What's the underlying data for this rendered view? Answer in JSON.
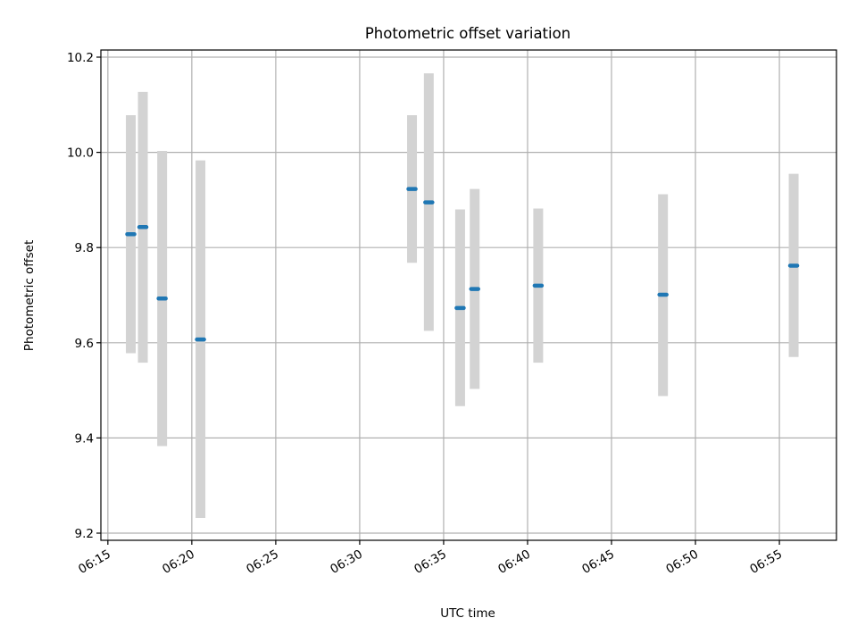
{
  "chart_data": {
    "type": "scatter",
    "title": "Photometric offset variation",
    "xlabel": "UTC time",
    "ylabel": "Photometric offset",
    "xticks": [
      "06:15",
      "06:20",
      "06:25",
      "06:30",
      "06:35",
      "06:40",
      "06:45",
      "06:50",
      "06:55"
    ],
    "yticks": [
      "9.2",
      "9.4",
      "9.6",
      "9.8",
      "10.0",
      "10.2"
    ],
    "xlim": [
      "06:14:35",
      "06:58:24"
    ],
    "ylim": [
      9.185,
      10.215
    ],
    "grid": true,
    "points": [
      {
        "x": "06:16:22",
        "y": 9.828,
        "err_low": 9.578,
        "err_high": 10.078
      },
      {
        "x": "06:17:05",
        "y": 9.843,
        "err_low": 9.558,
        "err_high": 10.127
      },
      {
        "x": "06:18:14",
        "y": 9.693,
        "err_low": 9.383,
        "err_high": 10.003
      },
      {
        "x": "06:20:31",
        "y": 9.607,
        "err_low": 9.232,
        "err_high": 9.983
      },
      {
        "x": "06:33:07",
        "y": 9.923,
        "err_low": 9.768,
        "err_high": 10.078
      },
      {
        "x": "06:34:07",
        "y": 9.895,
        "err_low": 9.625,
        "err_high": 10.166
      },
      {
        "x": "06:35:59",
        "y": 9.673,
        "err_low": 9.467,
        "err_high": 9.88
      },
      {
        "x": "06:36:51",
        "y": 9.713,
        "err_low": 9.503,
        "err_high": 9.923
      },
      {
        "x": "06:40:38",
        "y": 9.72,
        "err_low": 9.558,
        "err_high": 9.882
      },
      {
        "x": "06:48:04",
        "y": 9.701,
        "err_low": 9.488,
        "err_high": 9.912
      },
      {
        "x": "06:55:51",
        "y": 9.762,
        "err_low": 9.57,
        "err_high": 9.955
      }
    ]
  }
}
